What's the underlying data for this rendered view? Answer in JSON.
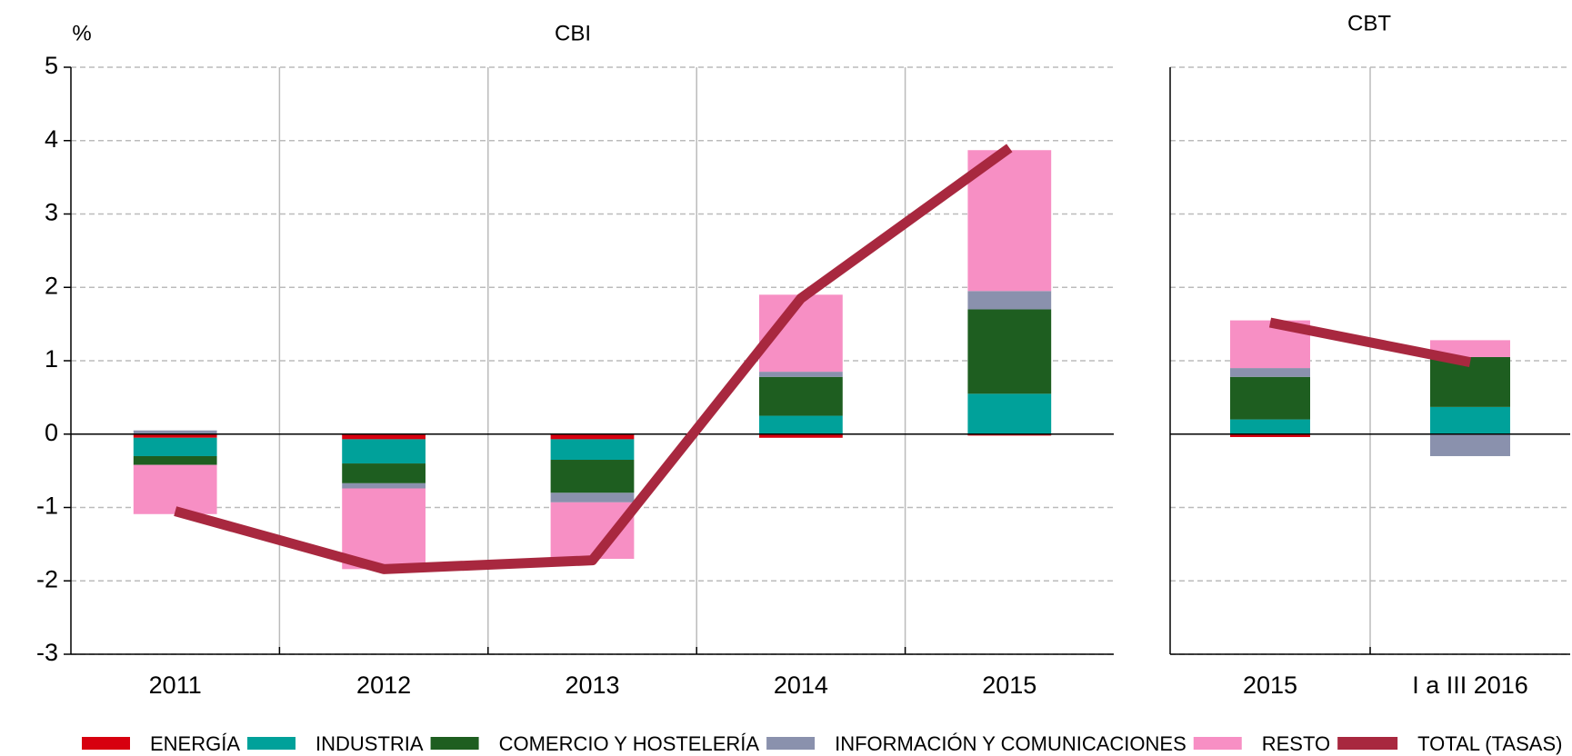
{
  "chart_data": {
    "type": "bar",
    "y_label": "%",
    "ylim": [
      -3,
      5
    ],
    "yticks": [
      -3,
      -2,
      -1,
      0,
      1,
      2,
      3,
      4,
      5
    ],
    "grid": true,
    "panels": [
      {
        "title": "CBI",
        "categories": [
          "2011",
          "2012",
          "2013",
          "2014",
          "2015"
        ]
      },
      {
        "title": "CBT",
        "categories": [
          "2015",
          "I a III 2016"
        ]
      }
    ],
    "series": [
      {
        "name": "ENERGÍA",
        "type": "bar",
        "color": "#d7000f",
        "values": [
          [
            -0.05,
            -0.07,
            -0.07,
            -0.05,
            -0.02
          ],
          [
            -0.04,
            0
          ]
        ]
      },
      {
        "name": "INDUSTRIA",
        "type": "bar",
        "color": "#00a19a",
        "values": [
          [
            -0.25,
            -0.33,
            -0.28,
            0.25,
            0.55
          ],
          [
            0.2,
            0.37
          ]
        ]
      },
      {
        "name": "COMERCIO Y HOSTELERÍA",
        "type": "bar",
        "color": "#1e5e20",
        "values": [
          [
            -0.12,
            -0.27,
            -0.45,
            0.53,
            1.15
          ],
          [
            0.58,
            0.68
          ]
        ]
      },
      {
        "name": "INFORMACIÓN Y COMUNICACIONES",
        "type": "bar",
        "color": "#8a91ad",
        "values": [
          [
            0.05,
            -0.07,
            -0.13,
            0.07,
            0.25
          ],
          [
            0.12,
            -0.3
          ]
        ]
      },
      {
        "name": "RESTO",
        "type": "bar",
        "color": "#f78fc4",
        "values": [
          [
            -0.67,
            -1.1,
            -0.77,
            1.05,
            1.92
          ],
          [
            0.65,
            0.23
          ]
        ]
      },
      {
        "name": "TOTAL (TASAS)",
        "type": "line",
        "color": "#a8283f",
        "values": [
          [
            -1.05,
            -1.84,
            -1.72,
            1.85,
            3.9
          ],
          [
            1.52,
            0.98
          ]
        ]
      }
    ]
  }
}
